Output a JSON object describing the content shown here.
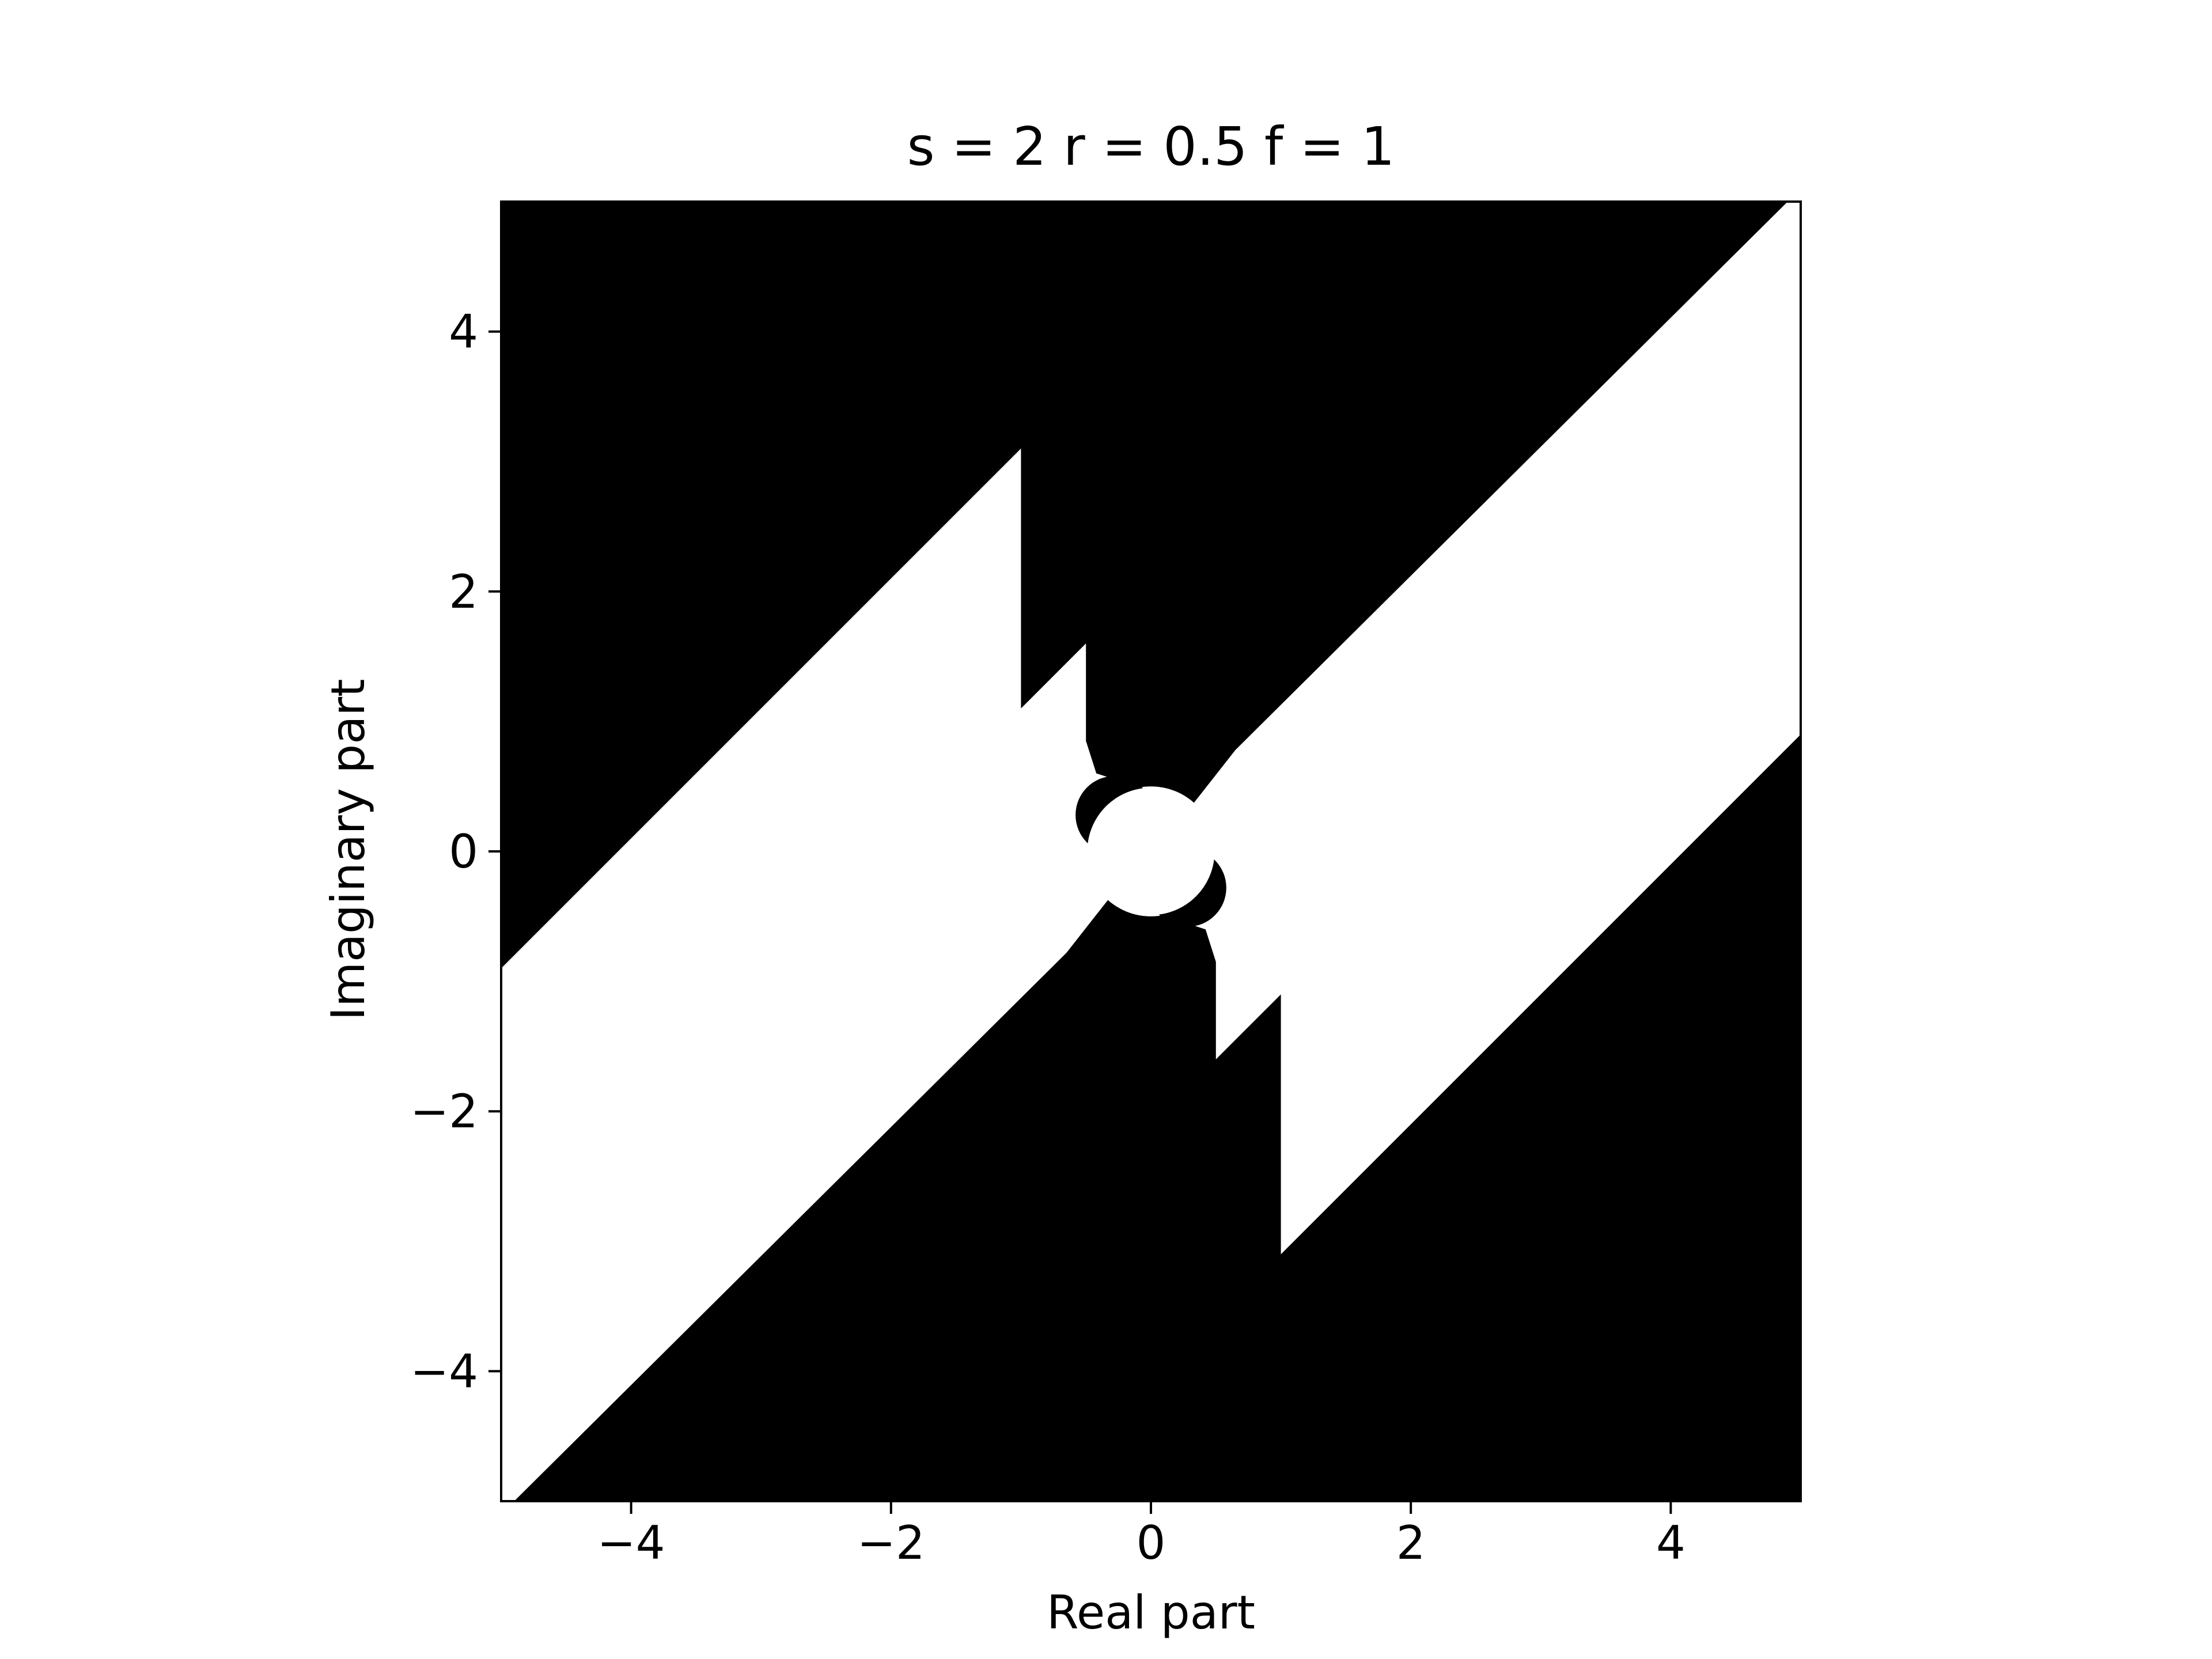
{
  "chart_data": {
    "type": "heatmap",
    "title": "s = 2 r = 0.5 f = 1",
    "xlabel": "Real part",
    "ylabel": "Imaginary part",
    "xlim": [
      -5,
      5
    ],
    "ylim": [
      -5,
      5
    ],
    "xticks": [
      -4,
      -2,
      0,
      2,
      4
    ],
    "yticks": [
      -4,
      -2,
      0,
      2,
      4
    ],
    "xtick_labels": [
      "−4",
      "−2",
      "0",
      "2",
      "4"
    ],
    "ytick_labels": [
      "−4",
      "−2",
      "0",
      "2",
      "4"
    ],
    "grid": false,
    "colors": {
      "region_fill": "#000000",
      "background": "#ffffff",
      "axes": "#000000"
    },
    "parameters": {
      "s": 2,
      "r": 0.5,
      "f": 1
    },
    "regions": [
      {
        "name": "upper-black-region",
        "points": [
          [
            -5,
            5
          ],
          [
            4.9,
            5
          ],
          [
            0.65,
            0.78
          ],
          [
            0.32,
            0.36
          ],
          [
            -0.42,
            0.6
          ],
          [
            -0.5,
            0.85
          ],
          [
            -0.5,
            1.6
          ],
          [
            -1,
            1.1
          ],
          [
            -1,
            3.1
          ],
          [
            -5,
            -0.9
          ]
        ]
      },
      {
        "name": "lower-black-region",
        "points": [
          [
            5,
            -5
          ],
          [
            -4.9,
            -5
          ],
          [
            -0.65,
            -0.78
          ],
          [
            -0.32,
            -0.36
          ],
          [
            0.42,
            -0.6
          ],
          [
            0.5,
            -0.85
          ],
          [
            0.5,
            -1.6
          ],
          [
            1,
            -1.1
          ],
          [
            1,
            -3.1
          ],
          [
            5,
            0.9
          ]
        ]
      }
    ],
    "discs": [
      {
        "name": "central-white-disc",
        "cx": 0,
        "cy": 0,
        "r": 0.5,
        "fill": "#ffffff"
      },
      {
        "name": "upper-black-crescent",
        "cx": -0.28,
        "cy": 0.28,
        "r": 0.3,
        "fill": "#000000"
      },
      {
        "name": "lower-black-crescent",
        "cx": 0.28,
        "cy": -0.28,
        "r": 0.3,
        "fill": "#000000"
      },
      {
        "name": "inner-white-disc",
        "cx": 0,
        "cy": 0,
        "r": 0.49,
        "fill": "#ffffff"
      }
    ]
  }
}
